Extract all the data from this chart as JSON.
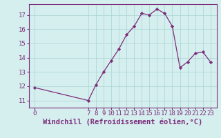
{
  "x": [
    0,
    7,
    8,
    9,
    10,
    11,
    12,
    13,
    14,
    15,
    16,
    17,
    18,
    19,
    20,
    21,
    22,
    23
  ],
  "y": [
    11.9,
    11.0,
    12.1,
    13.0,
    13.8,
    14.6,
    15.6,
    16.2,
    17.1,
    17.0,
    17.4,
    17.1,
    16.2,
    13.3,
    13.7,
    14.3,
    14.4,
    13.7
  ],
  "line_color": "#7b2d7b",
  "marker": "D",
  "marker_size": 2.2,
  "background_color": "#d5eeee",
  "grid_color": "#a8d4d4",
  "xlabel": "Windchill (Refroidissement éolien,°C)",
  "xlabel_color": "#7b2d7b",
  "tick_color": "#7b2d7b",
  "spine_color": "#7b2d7b",
  "ylim": [
    10.5,
    17.75
  ],
  "yticks": [
    11,
    12,
    13,
    14,
    15,
    16,
    17
  ],
  "xticks": [
    0,
    7,
    8,
    9,
    10,
    11,
    12,
    13,
    14,
    15,
    16,
    17,
    18,
    19,
    20,
    21,
    22,
    23
  ],
  "xlim": [
    -0.8,
    23.8
  ],
  "font_size": 6.5,
  "xlabel_fontsize": 7.5,
  "linewidth": 0.9
}
